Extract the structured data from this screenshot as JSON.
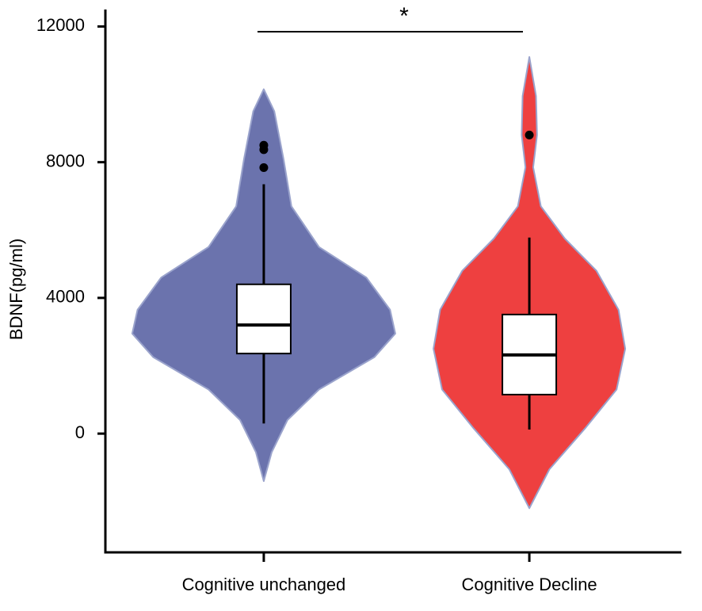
{
  "chart_data": {
    "type": "violin",
    "y_label": "BDNF(pg/ml)",
    "annotation": "*",
    "categories": [
      "Cognitive unchanged",
      "Cognitive Decline"
    ],
    "ylim": [
      -3500,
      12500
    ],
    "yticks": [
      0,
      4000,
      8000,
      12000
    ],
    "violins": [
      {
        "color": "#6b73ad",
        "whisker_low": 300,
        "q1": 2360,
        "median": 3200,
        "q3": 4400,
        "whisker_high": 7350,
        "outliers": [
          8500,
          8370,
          7840
        ],
        "density": {
          "y": [
            10150,
            9500,
            8100,
            6700,
            5500,
            4600,
            3650,
            2950,
            2250,
            1300,
            400,
            -550,
            -1400
          ],
          "width": [
            0,
            0.08,
            0.15,
            0.21,
            0.42,
            0.78,
            0.96,
            1,
            0.84,
            0.42,
            0.18,
            0.06,
            0
          ]
        }
      },
      {
        "color": "#ee4040",
        "whisker_low": 120,
        "q1": 1150,
        "median": 2320,
        "q3": 3510,
        "whisker_high": 5780,
        "outliers": [
          8800
        ],
        "density": {
          "y": [
            11100,
            9950,
            8800,
            7850,
            6700,
            5750,
            4800,
            3650,
            2500,
            1300,
            150,
            -1050,
            -2200
          ],
          "width": [
            0,
            0.07,
            0.08,
            0.04,
            0.12,
            0.37,
            0.7,
            0.93,
            1,
            0.91,
            0.58,
            0.21,
            0
          ]
        }
      }
    ]
  }
}
